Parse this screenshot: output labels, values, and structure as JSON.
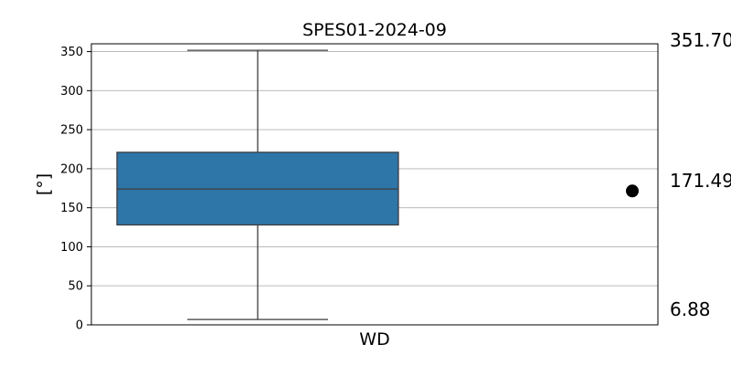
{
  "chart_data": {
    "type": "box",
    "title": "SPES01-2024-09",
    "xlabel": "WD",
    "ylabel": "[°]",
    "ylim": [
      0,
      360
    ],
    "yticks": [
      0,
      50,
      100,
      150,
      200,
      250,
      300,
      350
    ],
    "grid": true,
    "box": {
      "category": "WD",
      "whisker_low": 6.88,
      "q1": 128,
      "median": 174,
      "q3": 221,
      "whisker_high": 351.7,
      "color": "#2e75a8"
    },
    "marker": {
      "value": 171.49,
      "color": "#000000"
    },
    "side_labels": [
      "351.70",
      "171.49",
      "6.88"
    ]
  }
}
